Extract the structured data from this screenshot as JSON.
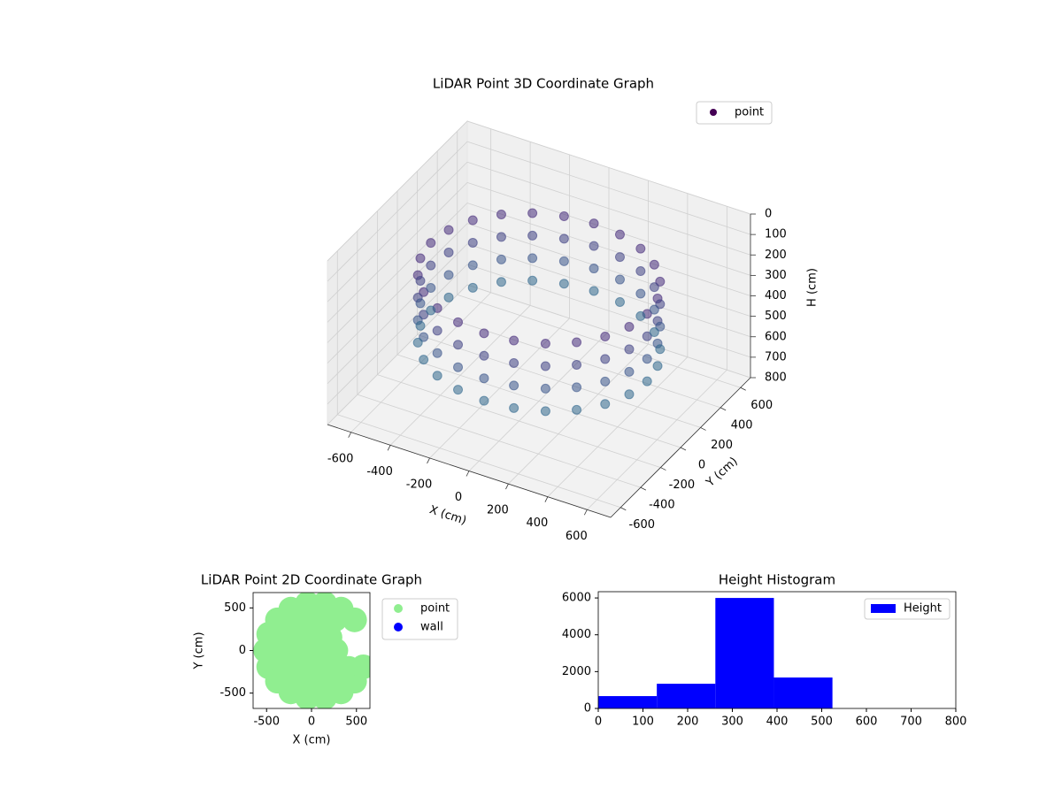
{
  "chart_data": [
    {
      "type": "scatter3d",
      "title": "LiDAR Point 3D Coordinate Graph",
      "xlabel": "X (cm)",
      "ylabel": "Y (cm)",
      "zlabel": "H (cm)",
      "xlim": [
        -720,
        720
      ],
      "ylim": [
        -700,
        700
      ],
      "zlim": [
        0,
        800
      ],
      "zinvert": true,
      "xticks": [
        -600,
        -400,
        -200,
        0,
        200,
        400,
        600
      ],
      "yticks": [
        -600,
        -400,
        -200,
        0,
        200,
        400,
        600
      ],
      "zticks": [
        0,
        100,
        200,
        300,
        400,
        500,
        600,
        700,
        800
      ],
      "grid": true,
      "legend": "upper right",
      "colormap": "viridis",
      "series": [
        {
          "name": "point",
          "color": "#440154",
          "x": [
            550,
            531,
            476,
            389,
            275,
            142,
            0,
            -142,
            -275,
            -389,
            -476,
            -531,
            -550,
            -531,
            -476,
            -389,
            -275,
            -142,
            0,
            142,
            275,
            389,
            476,
            531,
            550,
            531,
            476,
            389,
            275,
            142,
            0,
            -142,
            -275,
            -389,
            -476,
            -531,
            -550,
            -531,
            -476,
            -389,
            -275,
            -142,
            0,
            142,
            275,
            389,
            476,
            531,
            550,
            531,
            476,
            389,
            275,
            142,
            0,
            -142,
            -275,
            -389,
            -476,
            -531,
            -550,
            -531,
            -476,
            -389,
            -275,
            -142,
            0,
            142,
            275,
            389,
            476,
            531,
            550,
            531,
            476,
            389,
            275,
            142,
            0,
            -142,
            -275,
            -389,
            -476,
            -531,
            -550,
            -531,
            -476,
            -389,
            -275,
            -142,
            0,
            142,
            275,
            389,
            476,
            531
          ],
          "y": [
            0,
            142,
            275,
            389,
            476,
            531,
            550,
            531,
            476,
            389,
            275,
            142,
            0,
            -142,
            -275,
            -389,
            -476,
            -531,
            -550,
            -531,
            -476,
            -389,
            -275,
            -142,
            0,
            142,
            275,
            389,
            476,
            531,
            550,
            531,
            476,
            389,
            275,
            142,
            0,
            -142,
            -275,
            -389,
            -476,
            -531,
            -550,
            -531,
            -476,
            -389,
            -275,
            -142,
            0,
            142,
            275,
            389,
            476,
            531,
            550,
            531,
            476,
            389,
            275,
            142,
            0,
            -142,
            -275,
            -389,
            -476,
            -531,
            -550,
            -531,
            -476,
            -389,
            -275,
            -142,
            0,
            142,
            275,
            389,
            476,
            531,
            550,
            531,
            476,
            389,
            275,
            142,
            0,
            -142,
            -275,
            -389,
            -476,
            -531,
            -550,
            -531,
            -476,
            -389,
            -275,
            -142
          ],
          "z": [
            200,
            200,
            200,
            200,
            200,
            200,
            200,
            200,
            200,
            200,
            200,
            200,
            200,
            200,
            200,
            200,
            200,
            200,
            200,
            200,
            200,
            200,
            200,
            200,
            310,
            310,
            310,
            310,
            310,
            310,
            310,
            310,
            310,
            310,
            310,
            310,
            310,
            310,
            310,
            310,
            310,
            310,
            310,
            310,
            310,
            310,
            310,
            310,
            420,
            420,
            420,
            420,
            420,
            420,
            420,
            420,
            420,
            420,
            420,
            420,
            420,
            420,
            420,
            420,
            420,
            420,
            420,
            420,
            420,
            420,
            420,
            420,
            530,
            530,
            530,
            530,
            530,
            530,
            530,
            530,
            530,
            530,
            530,
            530,
            530,
            530,
            530,
            530,
            530,
            530,
            530,
            530,
            530,
            530,
            530,
            530
          ]
        }
      ]
    },
    {
      "type": "scatter",
      "title": "LiDAR Point 2D Coordinate Graph",
      "xlabel": "X (cm)",
      "ylabel": "Y (cm)",
      "xlim": [
        -650,
        650
      ],
      "ylim": [
        -680,
        680
      ],
      "xticks": [
        -500,
        0,
        500
      ],
      "yticks": [
        -500,
        0,
        500
      ],
      "legend": "outside upper right",
      "series": [
        {
          "name": "point",
          "color": "#90ee90",
          "x": [
            50,
            270,
            205,
            50,
            -105,
            -170,
            -105,
            50,
            205,
            260,
            50,
            -160,
            -314,
            -370,
            -314,
            -160,
            50,
            260,
            414,
            479,
            330,
            147,
            -47,
            -230,
            -379,
            -476,
            -510,
            -476,
            -379,
            -230,
            -47,
            147,
            330,
            479,
            576
          ],
          "y": [
            0,
            0,
            155,
            220,
            155,
            0,
            -155,
            -220,
            -155,
            364,
            420,
            364,
            210,
            0,
            -210,
            -364,
            -420,
            -364,
            -210,
            360,
            485,
            551,
            551,
            485,
            360,
            192,
            0,
            -192,
            -360,
            -485,
            -551,
            -551,
            -485,
            -360,
            -192
          ]
        },
        {
          "name": "wall",
          "color": "#0000ff",
          "x": [],
          "y": []
        }
      ]
    },
    {
      "type": "histogram",
      "title": "Height Histogram",
      "bins": [
        0,
        131,
        262,
        393,
        524
      ],
      "xlim": [
        0,
        800
      ],
      "ylim": [
        0,
        6340
      ],
      "xticks": [
        0,
        100,
        200,
        300,
        400,
        500,
        600,
        700,
        800
      ],
      "yticks": [
        0,
        2000,
        4000,
        6000
      ],
      "legend": "upper right",
      "series": [
        {
          "name": "Height",
          "color": "#0000ff",
          "values": [
            670,
            1340,
            6000,
            1680
          ]
        }
      ]
    }
  ]
}
